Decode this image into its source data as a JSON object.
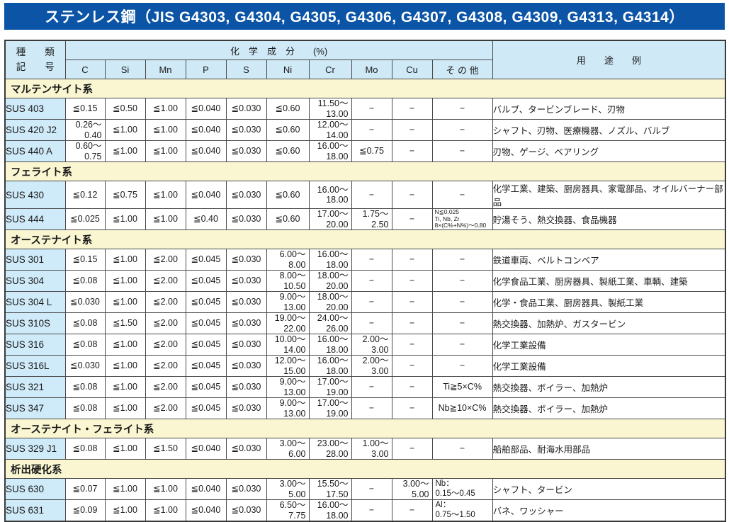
{
  "title": "ステンレス鋼（JIS G4303, G4304, G4305, G4306, G4307, G4308, G4309, G4313, G4314）",
  "colors": {
    "title_bar": "#0b54a6",
    "header_bg": "#cfe9f7",
    "section_bg": "#faf6d2",
    "row_label_bg": "#cfeaf8",
    "border": "#4a4a4a"
  },
  "header": {
    "kind_label_top": "種　　類",
    "kind_label_bottom": "記　　号",
    "chem_group_label": "化　学　成　分　　(%)",
    "usage_label": "用　　途　　例",
    "elements": [
      "C",
      "Si",
      "Mn",
      "P",
      "S",
      "Ni",
      "Cr",
      "Mo",
      "Cu",
      "そ の 他"
    ]
  },
  "sections": [
    {
      "name": "マルテンサイト系",
      "rows": [
        {
          "id": "SUS 403",
          "c": "≦0.15",
          "si": "≦0.50",
          "mn": "≦1.00",
          "p": "≦0.040",
          "s": "≦0.030",
          "ni": "≦0.60",
          "cr": "11.50～\n13.00",
          "mo": "−",
          "cu": "−",
          "other": "−",
          "usage": "バルブ、タービンブレード、刃物"
        },
        {
          "id": "SUS 420 J2",
          "c": "0.26～\n0.40",
          "si": "≦1.00",
          "mn": "≦1.00",
          "p": "≦0.040",
          "s": "≦0.030",
          "ni": "≦0.60",
          "cr": "12.00～\n14.00",
          "mo": "−",
          "cu": "−",
          "other": "−",
          "usage": "シャフト、刃物、医療機器、ノズル、バルブ"
        },
        {
          "id": "SUS 440 A",
          "c": "0.60～\n0.75",
          "si": "≦1.00",
          "mn": "≦1.00",
          "p": "≦0.040",
          "s": "≦0.030",
          "ni": "≦0.60",
          "cr": "16.00～\n18.00",
          "mo": "≦0.75",
          "cu": "−",
          "other": "−",
          "usage": "刃物、ゲージ、ベアリング"
        }
      ]
    },
    {
      "name": "フェライト系",
      "rows": [
        {
          "id": "SUS 430",
          "c": "≦0.12",
          "si": "≦0.75",
          "mn": "≦1.00",
          "p": "≦0.040",
          "s": "≦0.030",
          "ni": "≦0.60",
          "cr": "16.00～\n18.00",
          "mo": "−",
          "cu": "−",
          "other": "−",
          "usage": "化学工業、建築、厨房器具、家電部品、オイルバーナー部品"
        },
        {
          "id": "SUS 444",
          "c": "≦0.025",
          "si": "≦1.00",
          "mn": "≦1.00",
          "p": "≦0.40",
          "s": "≦0.030",
          "ni": "≦0.60",
          "cr": "17.00～\n20.00",
          "mo": "1.75～\n2.50",
          "cu": "−",
          "other": "N≦0.025\nTi, Nb, Zr\n8×(C%+N%)～0.80",
          "usage": "貯湯そう、熱交換器、食品機器"
        }
      ]
    },
    {
      "name": "オーステナイト系",
      "rows": [
        {
          "id": "SUS 301",
          "c": "≦0.15",
          "si": "≦1.00",
          "mn": "≦2.00",
          "p": "≦0.045",
          "s": "≦0.030",
          "ni": "6.00～\n8.00",
          "cr": "16.00～\n18.00",
          "mo": "−",
          "cu": "−",
          "other": "−",
          "usage": "鉄道車両、ベルトコンベア"
        },
        {
          "id": "SUS 304",
          "c": "≦0.08",
          "si": "≦1.00",
          "mn": "≦2.00",
          "p": "≦0.045",
          "s": "≦0.030",
          "ni": "8.00～\n10.50",
          "cr": "18.00～\n20.00",
          "mo": "−",
          "cu": "−",
          "other": "−",
          "usage": "化学食品工業、厨房器具、製紙工業、車輌、建築"
        },
        {
          "id": "SUS 304 L",
          "c": "≦0.030",
          "si": "≦1.00",
          "mn": "≦2.00",
          "p": "≦0.045",
          "s": "≦0.030",
          "ni": "9.00～\n13.00",
          "cr": "18.00～\n20.00",
          "mo": "−",
          "cu": "−",
          "other": "−",
          "usage": "化学・食品工業、厨房器具、製紙工業"
        },
        {
          "id": "SUS 310S",
          "c": "≦0.08",
          "si": "≦1.50",
          "mn": "≦2.00",
          "p": "≦0.045",
          "s": "≦0.030",
          "ni": "19.00～\n22.00",
          "cr": "24.00～\n26.00",
          "mo": "−",
          "cu": "−",
          "other": "−",
          "usage": "熱交換器、加熱炉、ガスタービン"
        },
        {
          "id": "SUS 316",
          "c": "≦0.08",
          "si": "≦1.00",
          "mn": "≦2.00",
          "p": "≦0.045",
          "s": "≦0.030",
          "ni": "10.00～\n14.00",
          "cr": "16.00～\n18.00",
          "mo": "2.00～\n3.00",
          "cu": "−",
          "other": "−",
          "usage": "化学工業設備"
        },
        {
          "id": "SUS 316L",
          "c": "≦0.030",
          "si": "≦1.00",
          "mn": "≦2.00",
          "p": "≦0.045",
          "s": "≦0.030",
          "ni": "12.00～\n15.00",
          "cr": "16.00～\n18.00",
          "mo": "2.00～\n3.00",
          "cu": "−",
          "other": "−",
          "usage": "化学工業設備"
        },
        {
          "id": "SUS 321",
          "c": "≦0.08",
          "si": "≦1.00",
          "mn": "≦2.00",
          "p": "≦0.045",
          "s": "≦0.030",
          "ni": "9.00～\n13.00",
          "cr": "17.00～\n19.00",
          "mo": "−",
          "cu": "−",
          "other": "Ti≧5×C%",
          "usage": "熱交換器、ボイラー、加熱炉"
        },
        {
          "id": "SUS 347",
          "c": "≦0.08",
          "si": "≦1.00",
          "mn": "≦2.00",
          "p": "≦0.045",
          "s": "≦0.030",
          "ni": "9.00～\n13.00",
          "cr": "17.00～\n19.00",
          "mo": "−",
          "cu": "−",
          "other": "Nb≧10×C%",
          "usage": "熱交換器、ボイラー、加熱炉"
        }
      ]
    },
    {
      "name": "オーステナイト・フェライト系",
      "rows": [
        {
          "id": "SUS 329 J1",
          "c": "≦0.08",
          "si": "≦1.00",
          "mn": "≦1.50",
          "p": "≦0.040",
          "s": "≦0.030",
          "ni": "3.00～\n6.00",
          "cr": "23.00～\n28.00",
          "mo": "1.00～\n3.00",
          "cu": "−",
          "other": "−",
          "usage": "船舶部品、耐海水用部品"
        }
      ]
    },
    {
      "name": "析出硬化系",
      "rows": [
        {
          "id": "SUS 630",
          "c": "≦0.07",
          "si": "≦1.00",
          "mn": "≦1.00",
          "p": "≦0.040",
          "s": "≦0.030",
          "ni": "3.00～\n5.00",
          "cr": "15.50～\n17.50",
          "mo": "−",
          "cu": "3.00～\n5.00",
          "other": "Nb：\n0.15～0.45",
          "usage": "シャフト、タービン"
        },
        {
          "id": "SUS 631",
          "c": "≦0.09",
          "si": "≦1.00",
          "mn": "≦1.00",
          "p": "≦0.040",
          "s": "≦0.030",
          "ni": "6.50～\n7.75",
          "cr": "16.00～\n18.00",
          "mo": "−",
          "cu": "−",
          "other": "Al：\n0.75～1.50",
          "usage": "バネ、ワッシャー"
        }
      ]
    }
  ]
}
